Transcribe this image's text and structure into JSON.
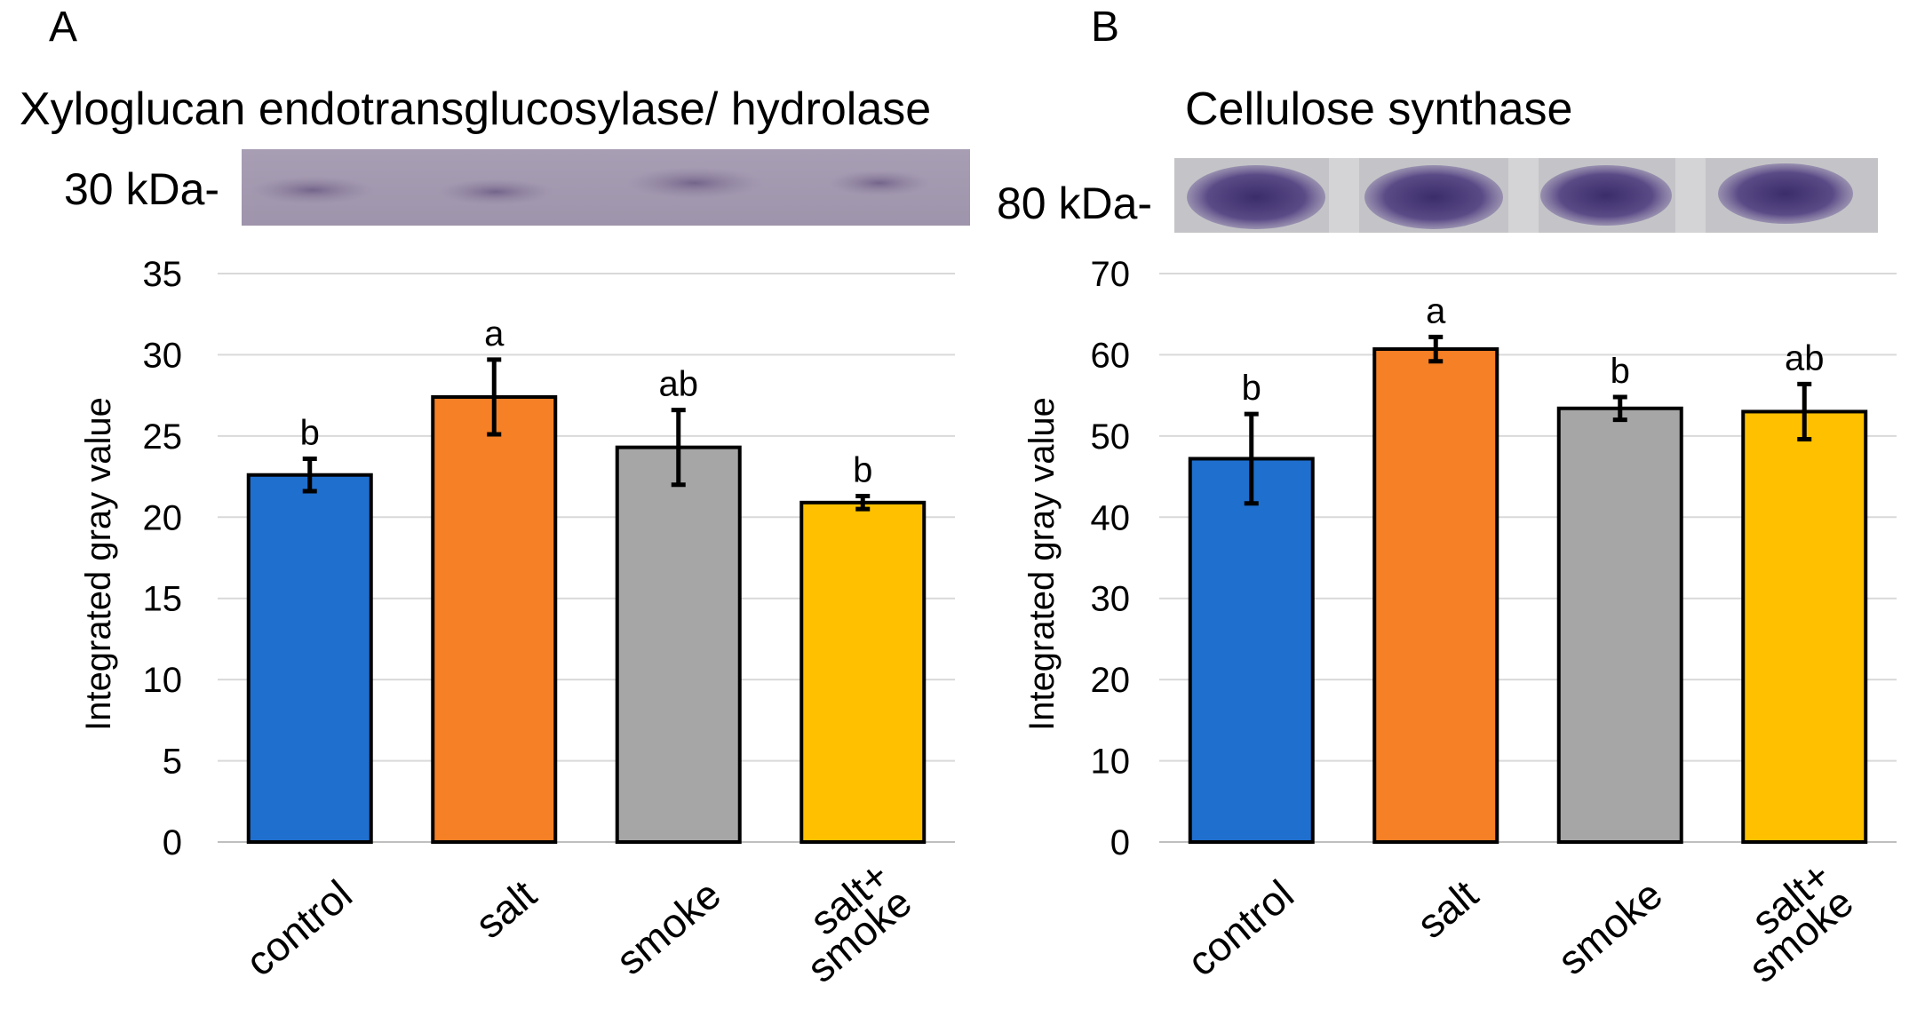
{
  "chart_data": [
    {
      "type": "bar",
      "panel": "A",
      "title": "Xyloglucan endotransglucosylase/ hydrolase",
      "blot_label": "30 kDa-",
      "ylabel": "Integrated  gray value",
      "xlabel": "",
      "ylim": [
        0,
        35
      ],
      "yticks": [
        0,
        5,
        10,
        15,
        20,
        25,
        30,
        35
      ],
      "grid": true,
      "categories": [
        "control",
        "salt",
        "smoke",
        "salt+ smoke"
      ],
      "category_lines": [
        [
          "control"
        ],
        [
          "salt"
        ],
        [
          "smoke"
        ],
        [
          "salt+",
          "smoke"
        ]
      ],
      "values": [
        22.6,
        27.4,
        24.3,
        20.9
      ],
      "errors": [
        1.0,
        2.3,
        2.3,
        0.4
      ],
      "significance": [
        "b",
        "a",
        "ab",
        "b"
      ],
      "colors": [
        "#1f6fce",
        "#f58025",
        "#a6a6a6",
        "#ffc000"
      ]
    },
    {
      "type": "bar",
      "panel": "B",
      "title": "Cellulose synthase",
      "blot_label": "80 kDa-",
      "ylabel": "Integrated  gray value",
      "xlabel": "",
      "ylim": [
        0,
        70
      ],
      "yticks": [
        0,
        10,
        20,
        30,
        40,
        50,
        60,
        70
      ],
      "grid": true,
      "categories": [
        "control",
        "salt",
        "smoke",
        "salt+ smoke"
      ],
      "category_lines": [
        [
          "control"
        ],
        [
          "salt"
        ],
        [
          "smoke"
        ],
        [
          "salt+",
          "smoke"
        ]
      ],
      "values": [
        47.2,
        60.7,
        53.4,
        53.0
      ],
      "errors": [
        5.5,
        1.5,
        1.4,
        3.4
      ],
      "significance": [
        "b",
        "a",
        "b",
        "ab"
      ],
      "colors": [
        "#1f6fce",
        "#f58025",
        "#a6a6a6",
        "#ffc000"
      ]
    }
  ]
}
